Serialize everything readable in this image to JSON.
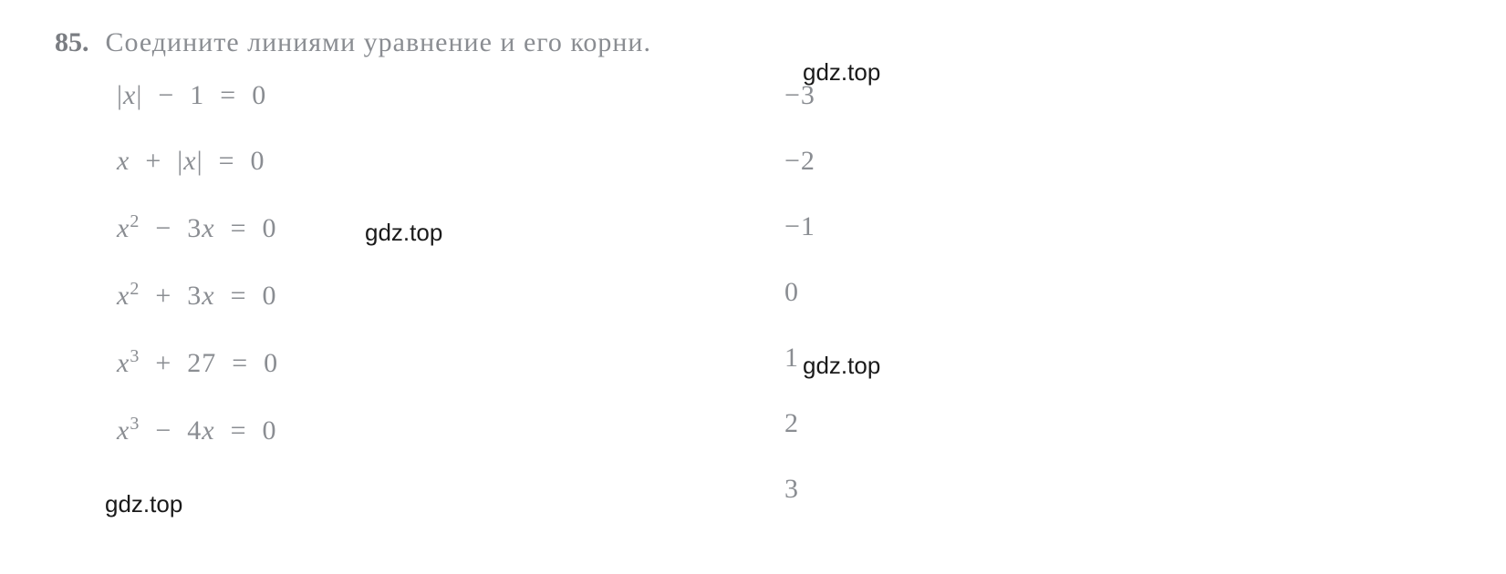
{
  "problem": {
    "number": "85.",
    "text": "Соедините  линиями  уравнение  и  его  корни."
  },
  "equations": [
    "|x|  −  1  =  0",
    "x  +  |x|  =  0",
    "x²  −  3x  =  0",
    "x²  +  3x  =  0",
    "x³  +  27  =  0",
    "x³  −  4x  =  0"
  ],
  "roots": [
    "−3",
    "−2",
    "−1",
    "0",
    "1",
    "2",
    "3"
  ],
  "watermark": "gdz.top",
  "colors": {
    "text": "#8a8d92",
    "number": "#7a7d82",
    "watermark": "#1a1a1a",
    "background": "#ffffff"
  },
  "typography": {
    "body_fontsize": 30,
    "superscript_fontsize": 20,
    "watermark_fontsize": 26
  }
}
